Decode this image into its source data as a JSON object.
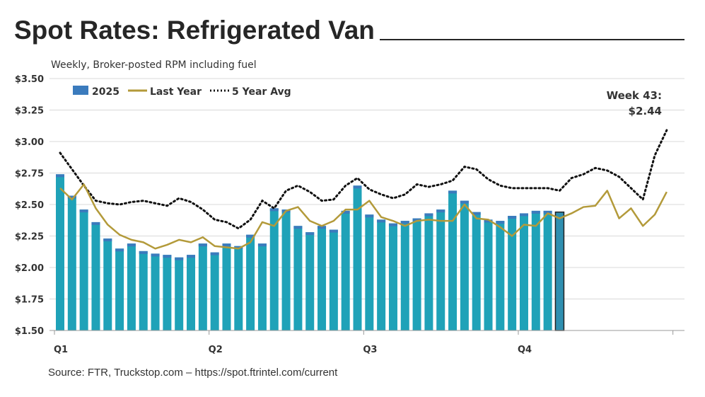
{
  "title": "Spot Rates: Refrigerated Van",
  "subtitle": "Weekly, Broker-posted RPM including fuel",
  "source": "Source: FTR, Truckstop.com – https://spot.ftrintel.com/current",
  "chart_data": {
    "type": "bar",
    "x": "week",
    "ylim": [
      1.5,
      3.5
    ],
    "yticks": [
      "$1.50",
      "$1.75",
      "$2.00",
      "$2.25",
      "$2.50",
      "$2.75",
      "$3.00",
      "$3.25",
      "$3.50"
    ],
    "ytick_values": [
      1.5,
      1.75,
      2.0,
      2.25,
      2.5,
      2.75,
      3.0,
      3.25,
      3.5
    ],
    "xticks": [
      {
        "label": "Q1",
        "week": 1
      },
      {
        "label": "Q2",
        "week": 14
      },
      {
        "label": "Q3",
        "week": 27
      },
      {
        "label": "Q4",
        "week": 40
      }
    ],
    "weeks": 52,
    "grid": true,
    "legend_placement": "top-left",
    "colors": {
      "bar": "#1fa2b8",
      "bar_top": "#3b7bbd",
      "last_year": "#b39a3a",
      "avg5": "#111111",
      "grid": "#d9d9d9"
    },
    "series": [
      {
        "name": "2025",
        "type": "bar",
        "values": [
          2.74,
          2.57,
          2.46,
          2.36,
          2.23,
          2.15,
          2.19,
          2.13,
          2.11,
          2.1,
          2.08,
          2.1,
          2.19,
          2.12,
          2.19,
          2.17,
          2.26,
          2.19,
          2.47,
          2.46,
          2.33,
          2.28,
          2.33,
          2.3,
          2.45,
          2.65,
          2.42,
          2.38,
          2.35,
          2.37,
          2.39,
          2.43,
          2.46,
          2.61,
          2.53,
          2.44,
          2.38,
          2.37,
          2.41,
          2.43,
          2.45,
          2.45,
          2.44
        ]
      },
      {
        "name": "Last Year",
        "type": "line",
        "values": [
          2.63,
          2.54,
          2.66,
          2.47,
          2.34,
          2.26,
          2.22,
          2.2,
          2.15,
          2.18,
          2.22,
          2.2,
          2.24,
          2.17,
          2.16,
          2.15,
          2.2,
          2.36,
          2.33,
          2.45,
          2.48,
          2.37,
          2.33,
          2.37,
          2.46,
          2.46,
          2.53,
          2.4,
          2.37,
          2.33,
          2.37,
          2.38,
          2.37,
          2.37,
          2.5,
          2.39,
          2.38,
          2.32,
          2.25,
          2.34,
          2.33,
          2.43,
          2.39,
          2.43,
          2.48,
          2.49,
          2.61,
          2.39,
          2.47,
          2.33,
          2.42,
          2.6
        ]
      },
      {
        "name": "5 Year Avg",
        "type": "line",
        "style": "dotted",
        "values": [
          2.91,
          2.78,
          2.65,
          2.53,
          2.51,
          2.5,
          2.52,
          2.53,
          2.51,
          2.49,
          2.55,
          2.52,
          2.46,
          2.38,
          2.36,
          2.31,
          2.38,
          2.53,
          2.47,
          2.61,
          2.65,
          2.6,
          2.53,
          2.54,
          2.65,
          2.71,
          2.62,
          2.58,
          2.55,
          2.58,
          2.66,
          2.64,
          2.66,
          2.69,
          2.8,
          2.78,
          2.7,
          2.65,
          2.63,
          2.63,
          2.63,
          2.63,
          2.61,
          2.71,
          2.74,
          2.79,
          2.77,
          2.72,
          2.63,
          2.54,
          2.89,
          3.09
        ]
      }
    ],
    "legend": [
      "2025",
      "Last Year",
      "5 Year Avg"
    ],
    "annotation": {
      "line1": "Week 43:",
      "line2": "$2.44",
      "week": 43
    }
  }
}
